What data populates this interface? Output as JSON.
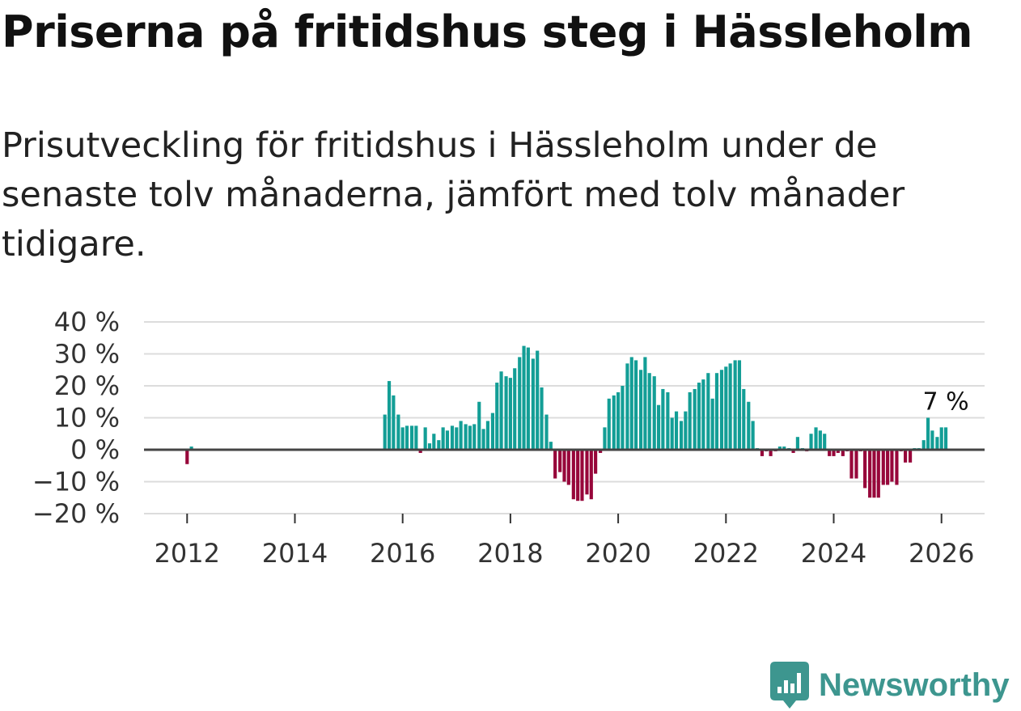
{
  "title": "Priserna på fritidshus steg i Hässleholm",
  "subtitle": "Prisutveckling för fritidshus i Hässleholm under de senaste tolv månaderna, jämfört med tolv månader tidigare.",
  "brand": {
    "name": "Newsworthy",
    "color": "#3d968f"
  },
  "colors": {
    "positive": "#139e96",
    "negative": "#97063a",
    "grid": "#dcdcdc",
    "zero": "#444444"
  },
  "chart_data": {
    "type": "bar",
    "title": "Priserna på fritidshus steg i Hässleholm",
    "xlabel": "",
    "ylabel": "",
    "ylim": [
      -20,
      40
    ],
    "xlim": [
      2011.2,
      2026.8
    ],
    "y_ticks": [
      -20,
      -10,
      0,
      10,
      20,
      30,
      40
    ],
    "y_tick_labels": [
      "−20 %",
      "−10 %",
      "0 %",
      "10 %",
      "20 %",
      "30 %",
      "40 %"
    ],
    "x_ticks": [
      2012,
      2014,
      2016,
      2018,
      2020,
      2022,
      2024,
      2026
    ],
    "x_tick_labels": [
      "2012",
      "2014",
      "2016",
      "2018",
      "2020",
      "2022",
      "2024",
      "2026"
    ],
    "annotation": {
      "text": "7 %",
      "x": 2026.08,
      "value": 7
    },
    "series": [
      {
        "name": "Prisutveckling",
        "points": [
          {
            "x": 2012.0,
            "y": -4.5
          },
          {
            "x": 2012.08,
            "y": 1
          },
          {
            "x": 2015.67,
            "y": 11
          },
          {
            "x": 2015.75,
            "y": 21.5
          },
          {
            "x": 2015.83,
            "y": 17
          },
          {
            "x": 2015.92,
            "y": 11
          },
          {
            "x": 2016.0,
            "y": 7
          },
          {
            "x": 2016.08,
            "y": 7.5
          },
          {
            "x": 2016.17,
            "y": 7.5
          },
          {
            "x": 2016.25,
            "y": 7.5
          },
          {
            "x": 2016.33,
            "y": -1
          },
          {
            "x": 2016.42,
            "y": 7
          },
          {
            "x": 2016.5,
            "y": 2
          },
          {
            "x": 2016.58,
            "y": 5
          },
          {
            "x": 2016.67,
            "y": 3
          },
          {
            "x": 2016.75,
            "y": 7
          },
          {
            "x": 2016.83,
            "y": 6
          },
          {
            "x": 2016.92,
            "y": 7.5
          },
          {
            "x": 2017.0,
            "y": 7
          },
          {
            "x": 2017.08,
            "y": 9
          },
          {
            "x": 2017.17,
            "y": 8
          },
          {
            "x": 2017.25,
            "y": 7.5
          },
          {
            "x": 2017.33,
            "y": 8
          },
          {
            "x": 2017.42,
            "y": 15
          },
          {
            "x": 2017.5,
            "y": 6.5
          },
          {
            "x": 2017.58,
            "y": 9
          },
          {
            "x": 2017.67,
            "y": 11.5
          },
          {
            "x": 2017.75,
            "y": 21
          },
          {
            "x": 2017.83,
            "y": 24.5
          },
          {
            "x": 2017.92,
            "y": 23
          },
          {
            "x": 2018.0,
            "y": 22.5
          },
          {
            "x": 2018.08,
            "y": 25.5
          },
          {
            "x": 2018.17,
            "y": 29
          },
          {
            "x": 2018.25,
            "y": 32.5
          },
          {
            "x": 2018.33,
            "y": 32
          },
          {
            "x": 2018.42,
            "y": 28.5
          },
          {
            "x": 2018.5,
            "y": 31
          },
          {
            "x": 2018.58,
            "y": 19.5
          },
          {
            "x": 2018.67,
            "y": 11
          },
          {
            "x": 2018.75,
            "y": 2.5
          },
          {
            "x": 2018.83,
            "y": -9
          },
          {
            "x": 2018.92,
            "y": -7
          },
          {
            "x": 2019.0,
            "y": -10
          },
          {
            "x": 2019.08,
            "y": -11
          },
          {
            "x": 2019.17,
            "y": -15.5
          },
          {
            "x": 2019.25,
            "y": -16
          },
          {
            "x": 2019.33,
            "y": -16
          },
          {
            "x": 2019.42,
            "y": -14
          },
          {
            "x": 2019.5,
            "y": -15.5
          },
          {
            "x": 2019.58,
            "y": -7.5
          },
          {
            "x": 2019.67,
            "y": -1
          },
          {
            "x": 2019.75,
            "y": 7
          },
          {
            "x": 2019.83,
            "y": 16
          },
          {
            "x": 2019.92,
            "y": 17
          },
          {
            "x": 2020.0,
            "y": 18
          },
          {
            "x": 2020.08,
            "y": 20
          },
          {
            "x": 2020.17,
            "y": 27
          },
          {
            "x": 2020.25,
            "y": 29
          },
          {
            "x": 2020.33,
            "y": 28
          },
          {
            "x": 2020.42,
            "y": 25
          },
          {
            "x": 2020.5,
            "y": 29
          },
          {
            "x": 2020.58,
            "y": 24
          },
          {
            "x": 2020.67,
            "y": 23
          },
          {
            "x": 2020.75,
            "y": 14
          },
          {
            "x": 2020.83,
            "y": 19
          },
          {
            "x": 2020.92,
            "y": 18
          },
          {
            "x": 2021.0,
            "y": 10
          },
          {
            "x": 2021.08,
            "y": 12
          },
          {
            "x": 2021.17,
            "y": 9
          },
          {
            "x": 2021.25,
            "y": 12
          },
          {
            "x": 2021.33,
            "y": 18
          },
          {
            "x": 2021.42,
            "y": 19
          },
          {
            "x": 2021.5,
            "y": 21
          },
          {
            "x": 2021.58,
            "y": 22
          },
          {
            "x": 2021.67,
            "y": 24
          },
          {
            "x": 2021.75,
            "y": 16
          },
          {
            "x": 2021.83,
            "y": 24
          },
          {
            "x": 2021.92,
            "y": 25
          },
          {
            "x": 2022.0,
            "y": 26
          },
          {
            "x": 2022.08,
            "y": 27
          },
          {
            "x": 2022.17,
            "y": 28
          },
          {
            "x": 2022.25,
            "y": 28
          },
          {
            "x": 2022.33,
            "y": 19
          },
          {
            "x": 2022.42,
            "y": 15
          },
          {
            "x": 2022.5,
            "y": 9
          },
          {
            "x": 2022.58,
            "y": 0.5
          },
          {
            "x": 2022.67,
            "y": -2
          },
          {
            "x": 2022.75,
            "y": -0.5
          },
          {
            "x": 2022.83,
            "y": -2
          },
          {
            "x": 2022.92,
            "y": -0.5
          },
          {
            "x": 2023.0,
            "y": 1
          },
          {
            "x": 2023.08,
            "y": 1
          },
          {
            "x": 2023.17,
            "y": 0.5
          },
          {
            "x": 2023.25,
            "y": -1
          },
          {
            "x": 2023.33,
            "y": 4
          },
          {
            "x": 2023.42,
            "y": 0.5
          },
          {
            "x": 2023.5,
            "y": -0.5
          },
          {
            "x": 2023.58,
            "y": 5
          },
          {
            "x": 2023.67,
            "y": 7
          },
          {
            "x": 2023.75,
            "y": 6
          },
          {
            "x": 2023.83,
            "y": 5
          },
          {
            "x": 2023.92,
            "y": -2
          },
          {
            "x": 2024.0,
            "y": -2
          },
          {
            "x": 2024.08,
            "y": -1
          },
          {
            "x": 2024.17,
            "y": -2
          },
          {
            "x": 2024.25,
            "y": -0.5
          },
          {
            "x": 2024.33,
            "y": -9
          },
          {
            "x": 2024.42,
            "y": -9
          },
          {
            "x": 2024.5,
            "y": -0.5
          },
          {
            "x": 2024.58,
            "y": -12
          },
          {
            "x": 2024.67,
            "y": -15
          },
          {
            "x": 2024.75,
            "y": -15
          },
          {
            "x": 2024.83,
            "y": -15
          },
          {
            "x": 2024.92,
            "y": -11
          },
          {
            "x": 2025.0,
            "y": -11
          },
          {
            "x": 2025.08,
            "y": -10
          },
          {
            "x": 2025.17,
            "y": -11
          },
          {
            "x": 2025.25,
            "y": -0.5
          },
          {
            "x": 2025.33,
            "y": -4
          },
          {
            "x": 2025.42,
            "y": -4
          },
          {
            "x": 2025.5,
            "y": 0.5
          },
          {
            "x": 2025.58,
            "y": 0.5
          },
          {
            "x": 2025.67,
            "y": 3
          },
          {
            "x": 2025.75,
            "y": 10
          },
          {
            "x": 2025.83,
            "y": 6
          },
          {
            "x": 2025.92,
            "y": 4
          },
          {
            "x": 2026.0,
            "y": 7
          },
          {
            "x": 2026.08,
            "y": 7
          }
        ]
      }
    ]
  }
}
